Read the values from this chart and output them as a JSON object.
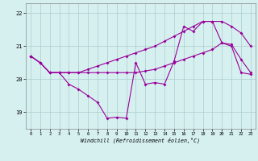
{
  "xlabel": "Windchill (Refroidissement éolien,°C)",
  "hours": [
    0,
    1,
    2,
    3,
    4,
    5,
    6,
    7,
    8,
    9,
    10,
    11,
    12,
    13,
    14,
    15,
    16,
    17,
    18,
    19,
    20,
    21,
    22,
    23
  ],
  "line_jagged": [
    20.7,
    20.5,
    20.2,
    20.2,
    19.85,
    19.7,
    19.5,
    19.3,
    18.82,
    18.85,
    18.82,
    20.5,
    19.85,
    19.9,
    19.85,
    20.55,
    21.6,
    21.45,
    21.75,
    21.75,
    21.1,
    21.0,
    20.2,
    20.15
  ],
  "line_upper": [
    20.7,
    20.5,
    20.2,
    20.2,
    20.2,
    20.2,
    20.3,
    20.4,
    20.5,
    20.6,
    20.7,
    20.8,
    20.9,
    21.0,
    21.15,
    21.3,
    21.45,
    21.6,
    21.75,
    21.75,
    21.75,
    21.6,
    21.4,
    21.0
  ],
  "line_lower": [
    20.7,
    20.5,
    20.2,
    20.2,
    20.2,
    20.2,
    20.2,
    20.2,
    20.2,
    20.2,
    20.2,
    20.2,
    20.25,
    20.3,
    20.4,
    20.5,
    20.6,
    20.7,
    20.8,
    20.9,
    21.1,
    21.05,
    20.6,
    20.2
  ],
  "ylim": [
    18.5,
    22.3
  ],
  "yticks": [
    19,
    20,
    21,
    22
  ],
  "line_color": "#990099",
  "bg_color": "#d6f0f0",
  "grid_color": "#aacccc",
  "spine_color": "#888888"
}
